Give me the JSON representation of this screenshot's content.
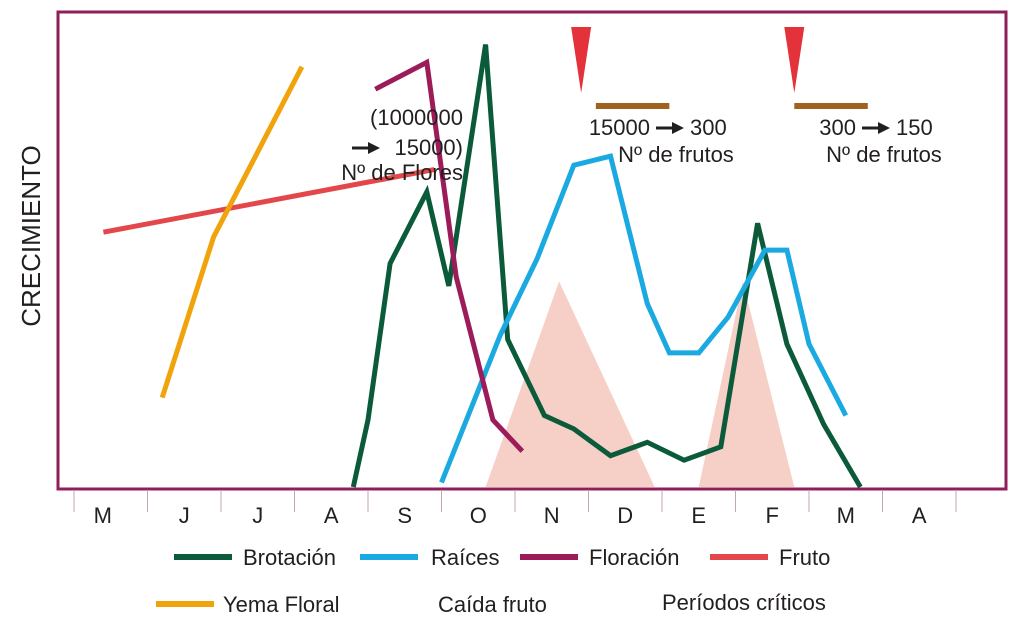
{
  "chart_data": {
    "type": "line",
    "ylabel": "CRECIMIENTO",
    "categories": [
      "M",
      "J",
      "J",
      "A",
      "S",
      "O",
      "N",
      "D",
      "E",
      "F",
      "M",
      "A"
    ],
    "x_scale": "month index (0 = M ... 11 = A, centered on each month cell)",
    "y_scale": "relative growth, 0-100 (no numeric ticks shown)",
    "grid": false,
    "series": [
      {
        "name": "Brotación",
        "color": "#0b5a3a",
        "points": [
          [
            3.3,
            0
          ],
          [
            3.5,
            15
          ],
          [
            3.8,
            50
          ],
          [
            4.3,
            66
          ],
          [
            4.6,
            45
          ],
          [
            5.1,
            99
          ],
          [
            5.4,
            33
          ],
          [
            5.9,
            16
          ],
          [
            6.3,
            13
          ],
          [
            6.8,
            7
          ],
          [
            7.3,
            10
          ],
          [
            7.8,
            6
          ],
          [
            8.3,
            9
          ],
          [
            8.8,
            59
          ],
          [
            9.2,
            32
          ],
          [
            9.7,
            14
          ],
          [
            10.2,
            0
          ]
        ]
      },
      {
        "name": "Raíces",
        "color": "#1ba9e1",
        "points": [
          [
            4.5,
            1
          ],
          [
            5.3,
            34
          ],
          [
            5.8,
            51
          ],
          [
            6.3,
            72
          ],
          [
            6.8,
            74
          ],
          [
            7.3,
            41
          ],
          [
            7.6,
            30
          ],
          [
            8.0,
            30
          ],
          [
            8.4,
            38
          ],
          [
            8.9,
            53
          ],
          [
            9.2,
            53
          ],
          [
            9.5,
            32
          ],
          [
            10.0,
            16
          ]
        ]
      },
      {
        "name": "Floración",
        "color": "#9c1c5a",
        "points": [
          [
            3.6,
            89
          ],
          [
            4.3,
            95
          ],
          [
            4.7,
            47
          ],
          [
            5.2,
            15
          ],
          [
            5.6,
            8
          ]
        ]
      },
      {
        "name": "Fruto",
        "color": "#e4474b",
        "points": [
          [
            -0.1,
            57
          ],
          [
            4.4,
            71
          ]
        ]
      },
      {
        "name": "Yema Floral",
        "color": "#f0a30a",
        "points": [
          [
            0.7,
            20
          ],
          [
            1.4,
            56
          ],
          [
            2.6,
            94
          ]
        ]
      }
    ],
    "shaded_regions": [
      {
        "label": "Caída fruto",
        "color": "#f6cfc7",
        "start": 5.1,
        "peak": 6.1,
        "end": 7.4
      },
      {
        "label": "Caída fruto",
        "color": "#f6cfc7",
        "start": 8.0,
        "peak": 8.6,
        "end": 9.3
      }
    ],
    "annotations": [
      {
        "lines": [
          "(1000000",
          "15000)",
          "Nº de Flores"
        ],
        "arrow_line": 1,
        "arrow_text": "15000)",
        "anchor_x": 3.9,
        "anchor_y": 78
      },
      {
        "lines": [
          "15000",
          "300",
          "Nº de frutos"
        ],
        "anchor_x": 6.7,
        "anchor_y": 76
      },
      {
        "lines": [
          "300",
          "150",
          "Nº de frutos"
        ],
        "anchor_x": 9.4,
        "anchor_y": 76
      }
    ],
    "critical_periods": [
      {
        "marker_x": 6.4,
        "bar": [
          6.6,
          7.6
        ]
      },
      {
        "marker_x": 9.3,
        "bar": [
          9.3,
          10.3
        ]
      }
    ],
    "legend": {
      "placement": "bottom",
      "items": [
        {
          "label": "Brotación",
          "color": "#0b5a3a",
          "kind": "line"
        },
        {
          "label": "Raíces",
          "color": "#1ba9e1",
          "kind": "line"
        },
        {
          "label": "Floración",
          "color": "#9c1c5a",
          "kind": "line"
        },
        {
          "label": "Fruto",
          "color": "#e4474b",
          "kind": "line"
        },
        {
          "label": "Yema Floral",
          "color": "#f0a30a",
          "kind": "line"
        },
        {
          "label": "Caída fruto",
          "kind": "text"
        },
        {
          "label": "Períodos críticos",
          "kind": "text"
        }
      ]
    }
  }
}
